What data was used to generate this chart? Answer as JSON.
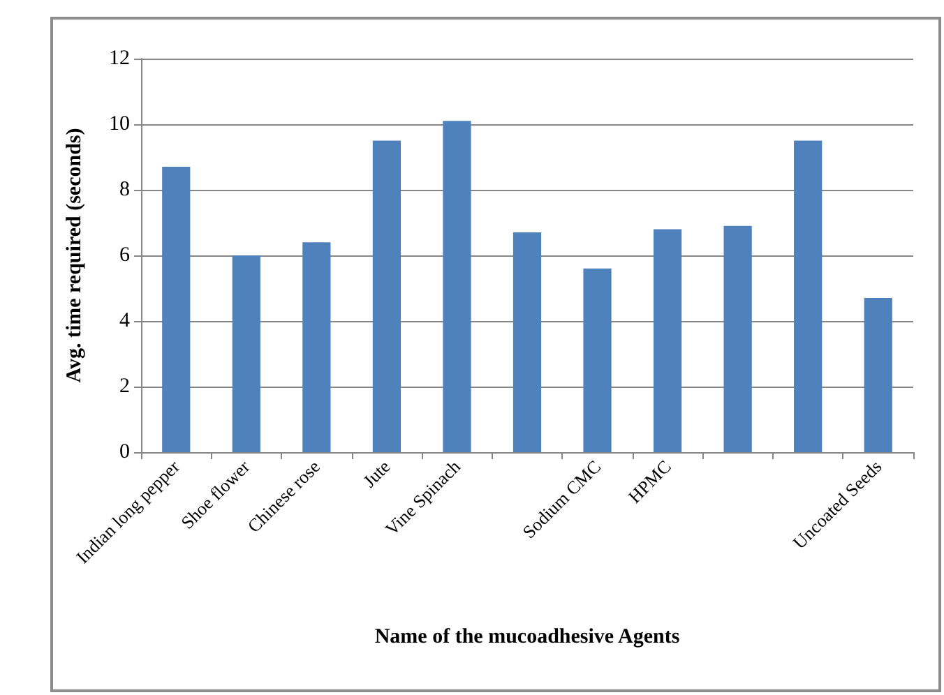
{
  "chart_data": {
    "type": "bar",
    "xlabel": "Name of the mucoadhesive Agents",
    "ylabel": "Avg. time required (seconds)",
    "categories": [
      "Indian long pepper",
      "Shoe flower",
      "Chinese rose",
      "Jute",
      "Vine Spinach",
      null,
      "Sodium CMC",
      "HPMC",
      null,
      null,
      "Uncoated Seeds"
    ],
    "values": [
      8.7,
      6.0,
      6.4,
      9.5,
      10.1,
      6.7,
      5.6,
      6.8,
      6.9,
      9.5,
      4.7
    ],
    "color": "#4f81bd",
    "ylim": [
      0,
      12
    ],
    "yticks": [
      0,
      2,
      4,
      6,
      8,
      10,
      12
    ],
    "grid": "y"
  }
}
